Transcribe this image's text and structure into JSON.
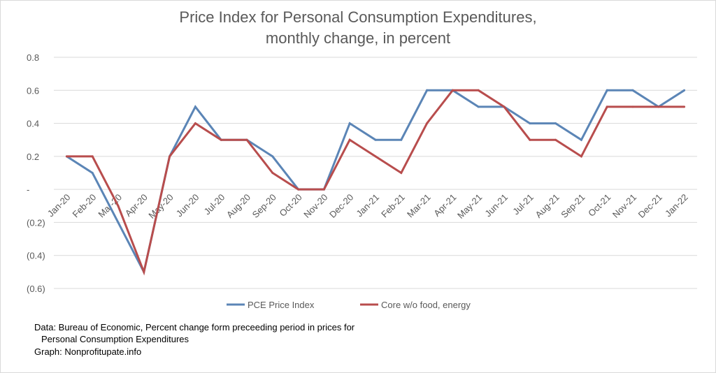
{
  "chart_data": {
    "type": "line",
    "title_lines": [
      "Price Index for Personal Consumption Expenditures,",
      "monthly change, in percent"
    ],
    "categories": [
      "Jan-20",
      "Feb-20",
      "Mar-20",
      "Apr-20",
      "May-20",
      "Jun-20",
      "Jul-20",
      "Aug-20",
      "Sep-20",
      "Oct-20",
      "Nov-20",
      "Dec-20",
      "Jan-21",
      "Feb-21",
      "Mar-21",
      "Apr-21",
      "May-21",
      "Jun-21",
      "Jul-21",
      "Aug-21",
      "Sep-21",
      "Oct-21",
      "Nov-21",
      "Dec-21",
      "Jan-22"
    ],
    "y_ticks": [
      {
        "value": 0.8,
        "label": "0.8"
      },
      {
        "value": 0.6,
        "label": "0.6"
      },
      {
        "value": 0.4,
        "label": "0.4"
      },
      {
        "value": 0.2,
        "label": "0.2"
      },
      {
        "value": 0,
        "label": "-"
      },
      {
        "value": -0.2,
        "label": "(0.2)"
      },
      {
        "value": -0.4,
        "label": "(0.4)"
      },
      {
        "value": -0.6,
        "label": "(0.6)"
      }
    ],
    "ylim": [
      -0.6,
      0.8
    ],
    "grid": true,
    "legend_position": "bottom",
    "series": [
      {
        "name": "PCE Price Index",
        "color": "#5b85b6",
        "values": [
          0.2,
          0.1,
          -0.2,
          -0.5,
          0.2,
          0.5,
          0.3,
          0.3,
          0.2,
          0.0,
          0.0,
          0.4,
          0.3,
          0.3,
          0.6,
          0.6,
          0.5,
          0.5,
          0.4,
          0.4,
          0.3,
          0.6,
          0.6,
          0.5,
          0.6
        ]
      },
      {
        "name": "Core w/o food, energy",
        "color": "#b84d4d",
        "values": [
          0.2,
          0.2,
          -0.1,
          -0.5,
          0.2,
          0.4,
          0.3,
          0.3,
          0.1,
          0.0,
          0.0,
          0.3,
          0.2,
          0.1,
          0.4,
          0.6,
          0.6,
          0.5,
          0.3,
          0.3,
          0.2,
          0.5,
          0.5,
          0.5,
          0.5
        ]
      }
    ]
  },
  "footnote": {
    "line1": "Data: Bureau of Economic, Percent change form preceeding period in prices for",
    "line2": "Personal Consumption Expenditures",
    "line3": "Graph:  Nonprofitupate.info"
  },
  "colors": {
    "grid": "#d9d9d9",
    "axis_text": "#595959",
    "frame": "#d9d9d9"
  }
}
